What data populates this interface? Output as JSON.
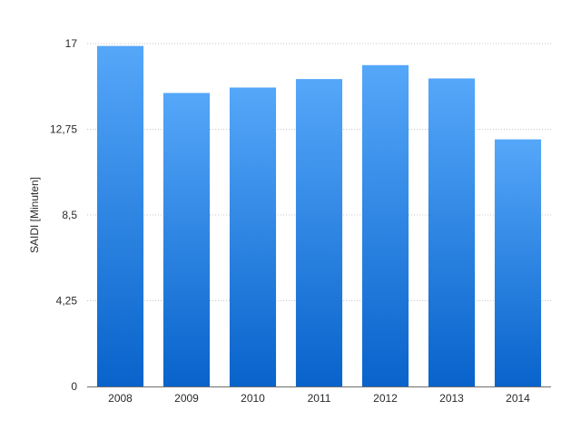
{
  "chart_data": {
    "type": "bar",
    "title": "",
    "xlabel": "",
    "ylabel": "SAIDI [Minuten]",
    "categories": [
      "2008",
      "2009",
      "2010",
      "2011",
      "2012",
      "2013",
      "2014"
    ],
    "values": [
      16.88,
      14.55,
      14.82,
      15.24,
      15.93,
      15.27,
      12.25
    ],
    "ylim": [
      0,
      17
    ],
    "yticks": [
      0,
      4.25,
      8.5,
      12.75,
      17
    ],
    "ytick_labels": [
      "0",
      "4,25",
      "8,5",
      "12,75",
      "17"
    ],
    "grid": true,
    "legend": "none",
    "colors": {
      "bar_top": "#55a7f9",
      "bar_bottom": "#0863cb",
      "grid": "#c8c8c8",
      "axis": "#6e6e6e"
    }
  }
}
